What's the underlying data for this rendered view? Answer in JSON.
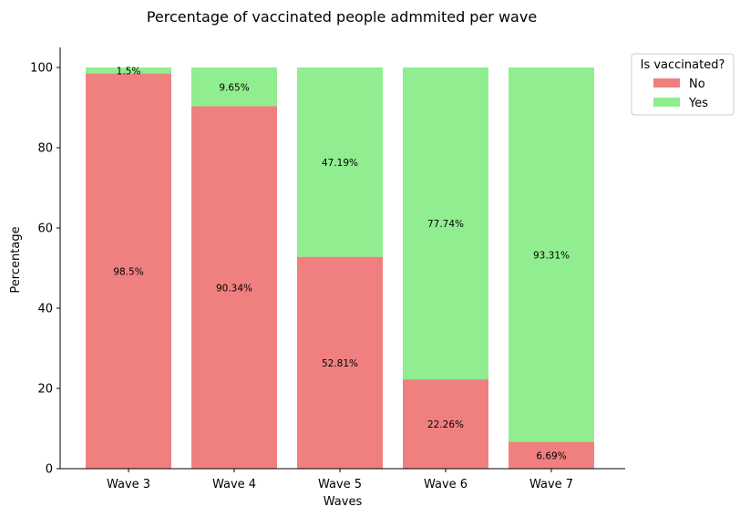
{
  "chart_data": {
    "type": "bar",
    "stacked": true,
    "title": "Percentage of vaccinated people admmited per wave",
    "xlabel": "Waves",
    "ylabel": "Percentage",
    "ylim": [
      0,
      105
    ],
    "yticks": [
      0,
      20,
      40,
      60,
      80,
      100
    ],
    "categories": [
      "Wave 3",
      "Wave 4",
      "Wave 5",
      "Wave 6",
      "Wave 7"
    ],
    "series": [
      {
        "name": "No",
        "color": "#f08080",
        "values": [
          98.5,
          90.34,
          52.81,
          22.26,
          6.69
        ],
        "labels": [
          "98.5%",
          "90.34%",
          "52.81%",
          "22.26%",
          "6.69%"
        ]
      },
      {
        "name": "Yes",
        "color": "#90ee90",
        "values": [
          1.5,
          9.65,
          47.19,
          77.74,
          93.31
        ],
        "labels": [
          "1.5%",
          "9.65%",
          "47.19%",
          "77.74%",
          "93.31%"
        ]
      }
    ],
    "legend": {
      "title": "Is vaccinated?",
      "placement": "outside-top-right"
    },
    "grid": false
  }
}
